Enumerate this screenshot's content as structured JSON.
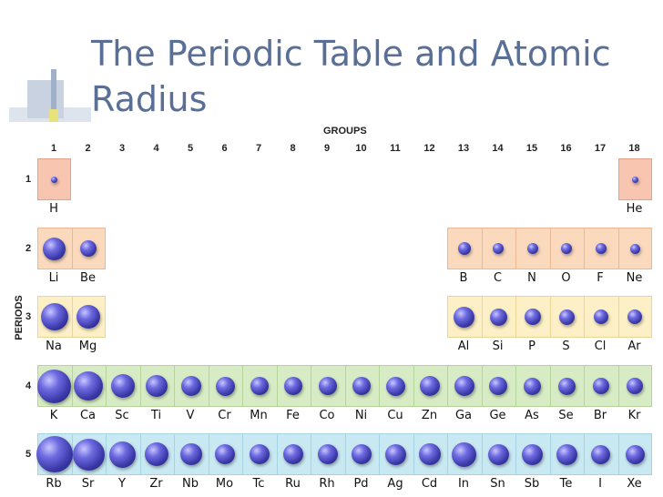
{
  "slide": {
    "title_line1": "The Periodic Table and Atomic",
    "title_line2": "Radius"
  },
  "axes": {
    "groups_label": "GROUPS",
    "periods_label": "PERIODS"
  },
  "groups": [
    "1",
    "2",
    "3",
    "4",
    "5",
    "6",
    "7",
    "8",
    "9",
    "10",
    "11",
    "12",
    "13",
    "14",
    "15",
    "16",
    "17",
    "18"
  ],
  "periods": [
    "1",
    "2",
    "3",
    "4",
    "5"
  ],
  "colors": {
    "period1": "#f7c5b0",
    "period2": "#fbd9bd",
    "period3": "#fdf0c6",
    "period4": "#d7ecc4",
    "period5": "#c8e8f2",
    "atom": "#4a47c4"
  },
  "elements": [
    {
      "symbol": "H",
      "period": 1,
      "group": 1,
      "radius": 37
    },
    {
      "symbol": "He",
      "period": 1,
      "group": 18,
      "radius": 32
    },
    {
      "symbol": "Li",
      "period": 2,
      "group": 1,
      "radius": 152
    },
    {
      "symbol": "Be",
      "period": 2,
      "group": 2,
      "radius": 112
    },
    {
      "symbol": "B",
      "period": 2,
      "group": 13,
      "radius": 85
    },
    {
      "symbol": "C",
      "period": 2,
      "group": 14,
      "radius": 77
    },
    {
      "symbol": "N",
      "period": 2,
      "group": 15,
      "radius": 75
    },
    {
      "symbol": "O",
      "period": 2,
      "group": 16,
      "radius": 73
    },
    {
      "symbol": "F",
      "period": 2,
      "group": 17,
      "radius": 72
    },
    {
      "symbol": "Ne",
      "period": 2,
      "group": 18,
      "radius": 71
    },
    {
      "symbol": "Na",
      "period": 3,
      "group": 1,
      "radius": 186
    },
    {
      "symbol": "Mg",
      "period": 3,
      "group": 2,
      "radius": 160
    },
    {
      "symbol": "Al",
      "period": 3,
      "group": 13,
      "radius": 143
    },
    {
      "symbol": "Si",
      "period": 3,
      "group": 14,
      "radius": 118
    },
    {
      "symbol": "P",
      "period": 3,
      "group": 15,
      "radius": 110
    },
    {
      "symbol": "S",
      "period": 3,
      "group": 16,
      "radius": 103
    },
    {
      "symbol": "Cl",
      "period": 3,
      "group": 17,
      "radius": 99
    },
    {
      "symbol": "Ar",
      "period": 3,
      "group": 18,
      "radius": 98
    },
    {
      "symbol": "K",
      "period": 4,
      "group": 1,
      "radius": 227
    },
    {
      "symbol": "Ca",
      "period": 4,
      "group": 2,
      "radius": 197
    },
    {
      "symbol": "Sc",
      "period": 4,
      "group": 3,
      "radius": 162
    },
    {
      "symbol": "Ti",
      "period": 4,
      "group": 4,
      "radius": 147
    },
    {
      "symbol": "V",
      "period": 4,
      "group": 5,
      "radius": 134
    },
    {
      "symbol": "Cr",
      "period": 4,
      "group": 6,
      "radius": 128
    },
    {
      "symbol": "Mn",
      "period": 4,
      "group": 7,
      "radius": 127
    },
    {
      "symbol": "Fe",
      "period": 4,
      "group": 8,
      "radius": 126
    },
    {
      "symbol": "Co",
      "period": 4,
      "group": 9,
      "radius": 125
    },
    {
      "symbol": "Ni",
      "period": 4,
      "group": 10,
      "radius": 124
    },
    {
      "symbol": "Cu",
      "period": 4,
      "group": 11,
      "radius": 128
    },
    {
      "symbol": "Zn",
      "period": 4,
      "group": 12,
      "radius": 134
    },
    {
      "symbol": "Ga",
      "period": 4,
      "group": 13,
      "radius": 135
    },
    {
      "symbol": "Ge",
      "period": 4,
      "group": 14,
      "radius": 122
    },
    {
      "symbol": "As",
      "period": 4,
      "group": 15,
      "radius": 120
    },
    {
      "symbol": "Se",
      "period": 4,
      "group": 16,
      "radius": 119
    },
    {
      "symbol": "Br",
      "period": 4,
      "group": 17,
      "radius": 114
    },
    {
      "symbol": "Kr",
      "period": 4,
      "group": 18,
      "radius": 112
    },
    {
      "symbol": "Rb",
      "period": 5,
      "group": 1,
      "radius": 248
    },
    {
      "symbol": "Sr",
      "period": 5,
      "group": 2,
      "radius": 215
    },
    {
      "symbol": "Y",
      "period": 5,
      "group": 3,
      "radius": 180
    },
    {
      "symbol": "Zr",
      "period": 5,
      "group": 4,
      "radius": 160
    },
    {
      "symbol": "Nb",
      "period": 5,
      "group": 5,
      "radius": 146
    },
    {
      "symbol": "Mo",
      "period": 5,
      "group": 6,
      "radius": 139
    },
    {
      "symbol": "Tc",
      "period": 5,
      "group": 7,
      "radius": 136
    },
    {
      "symbol": "Ru",
      "period": 5,
      "group": 8,
      "radius": 134
    },
    {
      "symbol": "Rh",
      "period": 5,
      "group": 9,
      "radius": 134
    },
    {
      "symbol": "Pd",
      "period": 5,
      "group": 10,
      "radius": 137
    },
    {
      "symbol": "Ag",
      "period": 5,
      "group": 11,
      "radius": 144
    },
    {
      "symbol": "Cd",
      "period": 5,
      "group": 12,
      "radius": 151
    },
    {
      "symbol": "In",
      "period": 5,
      "group": 13,
      "radius": 167
    },
    {
      "symbol": "Sn",
      "period": 5,
      "group": 14,
      "radius": 140
    },
    {
      "symbol": "Sb",
      "period": 5,
      "group": 15,
      "radius": 140
    },
    {
      "symbol": "Te",
      "period": 5,
      "group": 16,
      "radius": 142
    },
    {
      "symbol": "I",
      "period": 5,
      "group": 17,
      "radius": 133
    },
    {
      "symbol": "Xe",
      "period": 5,
      "group": 18,
      "radius": 131
    }
  ]
}
